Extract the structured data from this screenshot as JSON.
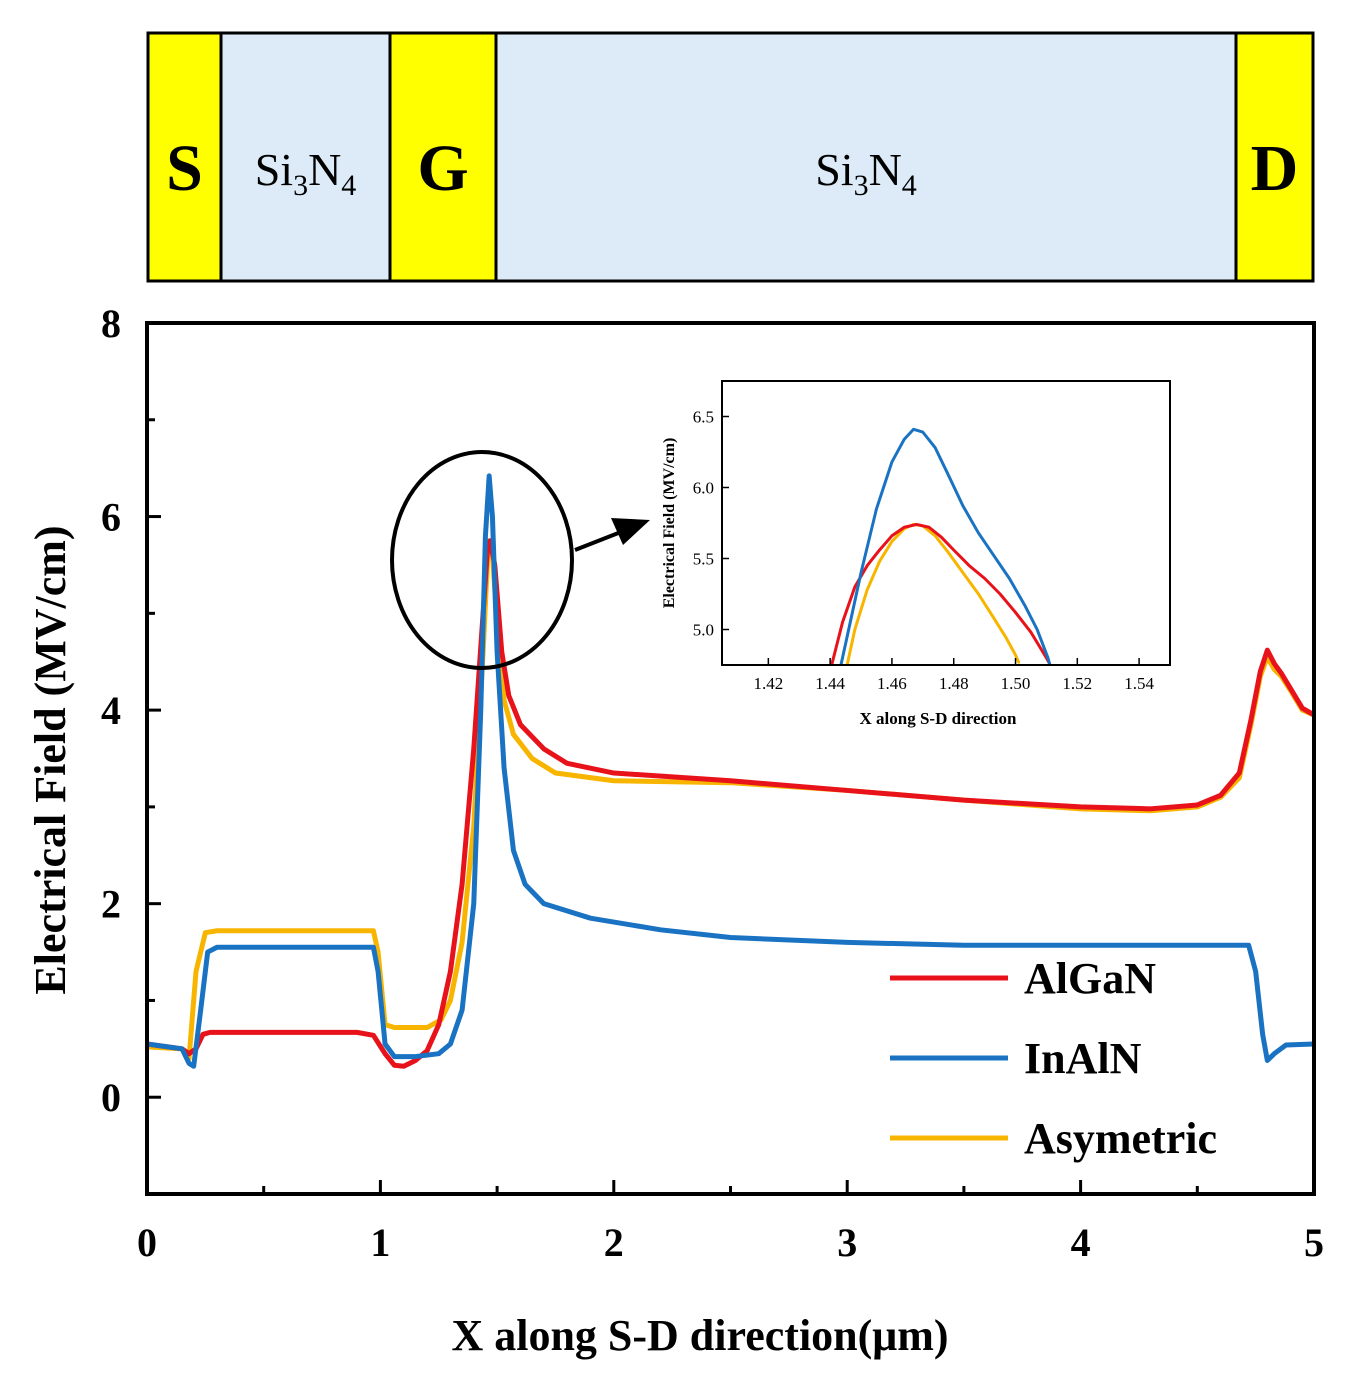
{
  "device": {
    "regions": [
      {
        "label": "S",
        "kind": "metal"
      },
      {
        "label": "Si",
        "sub": "3",
        "label2": "N",
        "sub2": "4",
        "kind": "nitride"
      },
      {
        "label": "G",
        "kind": "metal"
      },
      {
        "label": "Si",
        "sub": "3",
        "label2": "N",
        "sub2": "4",
        "kind": "nitride"
      },
      {
        "label": "D",
        "kind": "metal"
      }
    ],
    "colors": {
      "metal": "#ffff00",
      "nitride": "#dcebf7"
    }
  },
  "chart_data": [
    {
      "type": "line",
      "xlabel": "X along S-D direction(μm)",
      "ylabel": "Electrical Field (MV/cm)",
      "xlim": [
        0,
        5
      ],
      "ylim": [
        -1,
        8
      ],
      "xticks": [
        0,
        1,
        2,
        3,
        4,
        5
      ],
      "yticks": [
        0,
        2,
        4,
        6,
        8
      ],
      "legend_position": "bottom-right",
      "series": [
        {
          "name": "AlGaN",
          "color": "#e8121b",
          "points": [
            [
              0,
              0.55
            ],
            [
              0.15,
              0.5
            ],
            [
              0.18,
              0.45
            ],
            [
              0.21,
              0.5
            ],
            [
              0.24,
              0.65
            ],
            [
              0.27,
              0.67
            ],
            [
              0.5,
              0.67
            ],
            [
              0.9,
              0.67
            ],
            [
              0.97,
              0.64
            ],
            [
              1.02,
              0.45
            ],
            [
              1.06,
              0.33
            ],
            [
              1.1,
              0.32
            ],
            [
              1.15,
              0.38
            ],
            [
              1.2,
              0.48
            ],
            [
              1.25,
              0.75
            ],
            [
              1.3,
              1.3
            ],
            [
              1.35,
              2.2
            ],
            [
              1.4,
              3.6
            ],
            [
              1.44,
              5.0
            ],
            [
              1.46,
              5.7
            ],
            [
              1.47,
              5.75
            ],
            [
              1.49,
              5.5
            ],
            [
              1.52,
              4.6
            ],
            [
              1.55,
              4.15
            ],
            [
              1.6,
              3.85
            ],
            [
              1.7,
              3.6
            ],
            [
              1.8,
              3.45
            ],
            [
              2.0,
              3.35
            ],
            [
              2.5,
              3.27
            ],
            [
              3.0,
              3.17
            ],
            [
              3.5,
              3.07
            ],
            [
              4.0,
              3.0
            ],
            [
              4.3,
              2.98
            ],
            [
              4.5,
              3.02
            ],
            [
              4.6,
              3.12
            ],
            [
              4.68,
              3.35
            ],
            [
              4.73,
              3.9
            ],
            [
              4.77,
              4.4
            ],
            [
              4.8,
              4.62
            ],
            [
              4.83,
              4.48
            ],
            [
              4.86,
              4.38
            ],
            [
              4.9,
              4.22
            ],
            [
              4.95,
              4.02
            ],
            [
              5.0,
              3.95
            ]
          ]
        },
        {
          "name": "InAlN",
          "color": "#1a73c2",
          "points": [
            [
              0,
              0.55
            ],
            [
              0.15,
              0.5
            ],
            [
              0.18,
              0.35
            ],
            [
              0.2,
              0.32
            ],
            [
              0.23,
              0.9
            ],
            [
              0.26,
              1.5
            ],
            [
              0.3,
              1.55
            ],
            [
              0.5,
              1.55
            ],
            [
              0.97,
              1.55
            ],
            [
              0.99,
              1.3
            ],
            [
              1.02,
              0.55
            ],
            [
              1.06,
              0.42
            ],
            [
              1.15,
              0.42
            ],
            [
              1.25,
              0.45
            ],
            [
              1.3,
              0.55
            ],
            [
              1.35,
              0.9
            ],
            [
              1.4,
              2.0
            ],
            [
              1.43,
              4.0
            ],
            [
              1.45,
              5.8
            ],
            [
              1.466,
              6.42
            ],
            [
              1.48,
              6.0
            ],
            [
              1.5,
              4.6
            ],
            [
              1.53,
              3.4
            ],
            [
              1.57,
              2.55
            ],
            [
              1.62,
              2.2
            ],
            [
              1.7,
              2.0
            ],
            [
              1.9,
              1.85
            ],
            [
              2.2,
              1.73
            ],
            [
              2.5,
              1.65
            ],
            [
              3.0,
              1.6
            ],
            [
              3.5,
              1.57
            ],
            [
              4.0,
              1.57
            ],
            [
              4.5,
              1.57
            ],
            [
              4.72,
              1.57
            ],
            [
              4.75,
              1.3
            ],
            [
              4.78,
              0.65
            ],
            [
              4.8,
              0.38
            ],
            [
              4.83,
              0.45
            ],
            [
              4.88,
              0.54
            ],
            [
              5.0,
              0.55
            ]
          ]
        },
        {
          "name": "Asymetric",
          "color": "#f7b500",
          "points": [
            [
              0,
              0.52
            ],
            [
              0.15,
              0.5
            ],
            [
              0.18,
              0.4
            ],
            [
              0.21,
              1.3
            ],
            [
              0.25,
              1.7
            ],
            [
              0.3,
              1.72
            ],
            [
              0.6,
              1.72
            ],
            [
              0.97,
              1.72
            ],
            [
              0.99,
              1.5
            ],
            [
              1.02,
              0.75
            ],
            [
              1.06,
              0.72
            ],
            [
              1.2,
              0.72
            ],
            [
              1.26,
              0.8
            ],
            [
              1.3,
              1.0
            ],
            [
              1.35,
              1.6
            ],
            [
              1.4,
              2.8
            ],
            [
              1.44,
              4.6
            ],
            [
              1.46,
              5.6
            ],
            [
              1.467,
              5.75
            ],
            [
              1.48,
              5.6
            ],
            [
              1.5,
              4.9
            ],
            [
              1.53,
              4.1
            ],
            [
              1.57,
              3.75
            ],
            [
              1.65,
              3.5
            ],
            [
              1.75,
              3.35
            ],
            [
              2.0,
              3.27
            ],
            [
              2.5,
              3.25
            ],
            [
              3.0,
              3.17
            ],
            [
              3.5,
              3.07
            ],
            [
              4.0,
              2.98
            ],
            [
              4.3,
              2.96
            ],
            [
              4.5,
              3.0
            ],
            [
              4.6,
              3.1
            ],
            [
              4.68,
              3.3
            ],
            [
              4.73,
              3.85
            ],
            [
              4.77,
              4.35
            ],
            [
              4.8,
              4.55
            ],
            [
              4.83,
              4.42
            ],
            [
              4.86,
              4.35
            ],
            [
              4.9,
              4.2
            ],
            [
              4.95,
              4.0
            ],
            [
              5.0,
              3.95
            ]
          ]
        }
      ]
    },
    {
      "type": "line",
      "xlabel": "X along S-D direction",
      "ylabel": "Electrical Field (MV/cm)",
      "xlim": [
        1.405,
        1.55
      ],
      "ylim": [
        4.75,
        6.75
      ],
      "xticks": [
        1.42,
        1.44,
        1.46,
        1.48,
        1.5,
        1.52,
        1.54
      ],
      "xticklabels": [
        "1.42",
        "1.44",
        "1.46",
        "1.48",
        "1.50",
        "1.52",
        "1.54"
      ],
      "yticks": [
        5.0,
        5.5,
        6.0,
        6.5
      ],
      "yticklabels": [
        "5.0",
        "5.5",
        "6.0",
        "6.5"
      ],
      "series": [
        {
          "name": "AlGaN",
          "color": "#e8121b",
          "points": [
            [
              1.4405,
              4.75
            ],
            [
              1.444,
              5.05
            ],
            [
              1.448,
              5.3
            ],
            [
              1.452,
              5.45
            ],
            [
              1.456,
              5.56
            ],
            [
              1.46,
              5.66
            ],
            [
              1.464,
              5.72
            ],
            [
              1.468,
              5.74
            ],
            [
              1.472,
              5.72
            ],
            [
              1.476,
              5.65
            ],
            [
              1.48,
              5.56
            ],
            [
              1.485,
              5.45
            ],
            [
              1.49,
              5.36
            ],
            [
              1.495,
              5.25
            ],
            [
              1.5,
              5.12
            ],
            [
              1.505,
              4.98
            ],
            [
              1.51,
              4.8
            ],
            [
              1.511,
              4.76
            ]
          ]
        },
        {
          "name": "InAlN",
          "color": "#1a73c2",
          "points": [
            [
              1.4435,
              4.75
            ],
            [
              1.446,
              5.0
            ],
            [
              1.45,
              5.4
            ],
            [
              1.455,
              5.85
            ],
            [
              1.46,
              6.18
            ],
            [
              1.464,
              6.34
            ],
            [
              1.467,
              6.41
            ],
            [
              1.47,
              6.39
            ],
            [
              1.474,
              6.28
            ],
            [
              1.478,
              6.1
            ],
            [
              1.483,
              5.87
            ],
            [
              1.488,
              5.68
            ],
            [
              1.493,
              5.52
            ],
            [
              1.498,
              5.36
            ],
            [
              1.503,
              5.17
            ],
            [
              1.507,
              5.0
            ],
            [
              1.5105,
              4.8
            ],
            [
              1.511,
              4.76
            ]
          ]
        },
        {
          "name": "Asymetric",
          "color": "#f7b500",
          "points": [
            [
              1.4455,
              4.75
            ],
            [
              1.448,
              5.0
            ],
            [
              1.452,
              5.28
            ],
            [
              1.456,
              5.48
            ],
            [
              1.46,
              5.62
            ],
            [
              1.464,
              5.71
            ],
            [
              1.467,
              5.74
            ],
            [
              1.47,
              5.73
            ],
            [
              1.474,
              5.66
            ],
            [
              1.478,
              5.55
            ],
            [
              1.483,
              5.4
            ],
            [
              1.488,
              5.25
            ],
            [
              1.493,
              5.08
            ],
            [
              1.497,
              4.94
            ],
            [
              1.5,
              4.82
            ],
            [
              1.501,
              4.77
            ]
          ]
        }
      ]
    }
  ]
}
